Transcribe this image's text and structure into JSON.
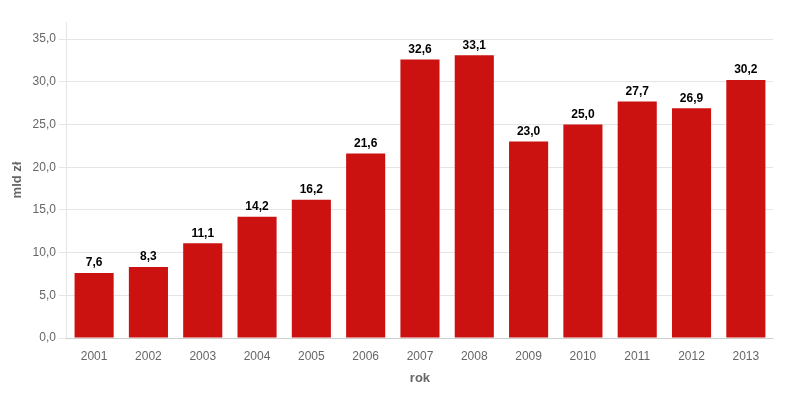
{
  "chart_data": {
    "type": "bar",
    "categories": [
      "2001",
      "2002",
      "2003",
      "2004",
      "2005",
      "2006",
      "2007",
      "2008",
      "2009",
      "2010",
      "2011",
      "2012",
      "2013"
    ],
    "values": [
      7.6,
      8.3,
      11.1,
      14.2,
      16.2,
      21.6,
      32.6,
      33.1,
      23.0,
      25.0,
      27.7,
      26.9,
      30.2
    ],
    "value_labels": [
      "7,6",
      "8,3",
      "11,1",
      "14,2",
      "16,2",
      "21,6",
      "32,6",
      "33,1",
      "23,0",
      "25,0",
      "27,7",
      "26,9",
      "30,2"
    ],
    "data_labels": true,
    "color": "#cc1111",
    "xlabel": "rok",
    "ylabel": "mld zł",
    "ylim": [
      0,
      37
    ],
    "yticks": [
      {
        "value": 0.0,
        "label": "0,0"
      },
      {
        "value": 5.0,
        "label": "5,0"
      },
      {
        "value": 10.0,
        "label": "10,0"
      },
      {
        "value": 15.0,
        "label": "15,0"
      },
      {
        "value": 20.0,
        "label": "20,0"
      },
      {
        "value": 25.0,
        "label": "25,0"
      },
      {
        "value": 30.0,
        "label": "30,0"
      },
      {
        "value": 35.0,
        "label": "35,0"
      }
    ],
    "grid": true
  }
}
